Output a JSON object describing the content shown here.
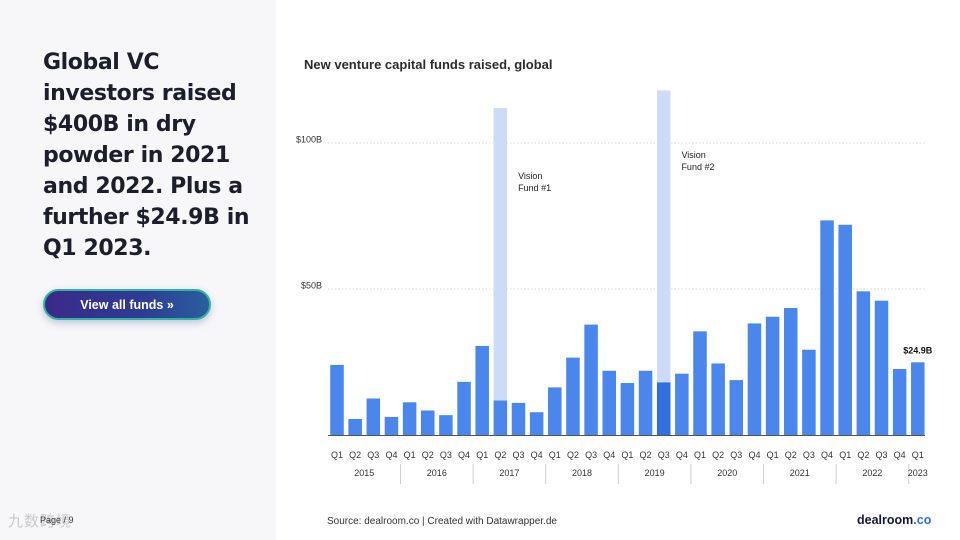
{
  "headline": "Global VC investors raised $400B in dry powder in 2021 and 2022. Plus a further $24.9B in Q1 2023.",
  "cta_label": "View all funds »",
  "page_label": "Page / 9",
  "watermark": "九数跨境",
  "source_text": "Source: dealroom.co | Created with Datawrapper.de",
  "logo_text": "dealroom",
  "logo_suffix": ".co",
  "colors": {
    "bar": "#4a86ec",
    "bar_highlight": "#2f6fe0",
    "vision_band": "#ccdbf7",
    "grid": "#d9d9d9"
  },
  "chart_data": {
    "type": "bar",
    "title": "New venture capital funds raised, global",
    "xlabel": "",
    "ylabel": "",
    "ylim": [
      0,
      100
    ],
    "y_ticks": [
      {
        "value": 100,
        "label": "$100B"
      },
      {
        "value": 50,
        "label": "$50B"
      }
    ],
    "categories": [
      "Q1",
      "Q2",
      "Q3",
      "Q4",
      "Q1",
      "Q2",
      "Q3",
      "Q4",
      "Q1",
      "Q2",
      "Q3",
      "Q4",
      "Q1",
      "Q2",
      "Q3",
      "Q4",
      "Q1",
      "Q2",
      "Q3",
      "Q4",
      "Q1",
      "Q2",
      "Q3",
      "Q4",
      "Q1",
      "Q2",
      "Q3",
      "Q4",
      "Q1",
      "Q2",
      "Q3",
      "Q4",
      "Q1"
    ],
    "years": [
      {
        "label": "2015",
        "count": 4
      },
      {
        "label": "2016",
        "count": 4
      },
      {
        "label": "2017",
        "count": 4
      },
      {
        "label": "2018",
        "count": 4
      },
      {
        "label": "2019",
        "count": 4
      },
      {
        "label": "2020",
        "count": 4
      },
      {
        "label": "2021",
        "count": 4
      },
      {
        "label": "2022",
        "count": 4
      },
      {
        "label": "2023",
        "count": 1
      }
    ],
    "values": [
      24,
      5.5,
      12.5,
      6.2,
      11.2,
      8.4,
      6.8,
      18.2,
      30.5,
      11.8,
      11,
      7.8,
      16.3,
      26.5,
      37.8,
      22,
      17.8,
      22,
      18,
      21,
      35.5,
      24.5,
      18.8,
      38.2,
      40.5,
      43.5,
      29.2,
      73.5,
      72,
      49.2,
      46,
      22.6,
      24.9
    ],
    "highlight_index": 18,
    "last_value_label": "$24.9B",
    "annotations": [
      {
        "index": 9,
        "label_lines": [
          "Vision",
          "Fund #1"
        ],
        "value": 112
      },
      {
        "index": 18,
        "label_lines": [
          "Vision",
          "Fund #2"
        ],
        "value": 118
      }
    ]
  }
}
